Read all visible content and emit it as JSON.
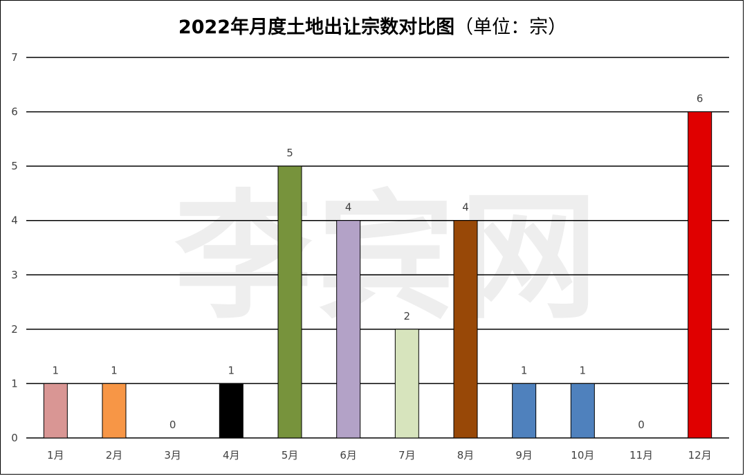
{
  "chart_data": {
    "type": "bar",
    "title": "2022年月度土地出让宗数对比图",
    "subtitle": "（单位：宗）",
    "xlabel": "",
    "ylabel": "",
    "ylim": [
      0,
      7
    ],
    "yticks": [
      "0",
      "1",
      "2",
      "3",
      "4",
      "5",
      "6",
      "7"
    ],
    "grid": true,
    "categories": [
      "1月",
      "2月",
      "3月",
      "4月",
      "5月",
      "6月",
      "7月",
      "8月",
      "9月",
      "10月",
      "11月",
      "12月"
    ],
    "values": [
      1,
      1,
      0,
      1,
      5,
      4,
      2,
      4,
      1,
      1,
      0,
      6
    ],
    "colors": [
      "#D99694",
      "#F79646",
      "#4F81BD",
      "#000000",
      "#77933C",
      "#B3A2C7",
      "#D7E4BD",
      "#984807",
      "#4F81BD",
      "#4F81BD",
      "#4F81BD",
      "#E00000"
    ]
  },
  "watermark": "李宾网"
}
